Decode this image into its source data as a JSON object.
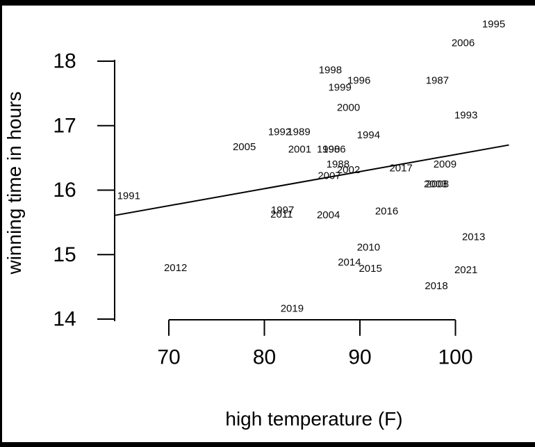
{
  "page": {
    "background_color": "#ffffff",
    "frame_color": "#000000",
    "ink_color": "#000000"
  },
  "chart_data": {
    "type": "scatter",
    "title": "",
    "xlabel": "high temperature (F)",
    "ylabel": "winning time in hours",
    "xlim": [
      64,
      106
    ],
    "ylim": [
      14,
      18.6
    ],
    "xticks": [
      70,
      80,
      90,
      100
    ],
    "yticks": [
      14,
      15,
      16,
      17,
      18
    ],
    "grid": false,
    "legend": "none",
    "point_style": "text-year-labels",
    "points": [
      {
        "label": "1986",
        "x": 87.3,
        "y": 16.63
      },
      {
        "label": "1987",
        "x": 98.1,
        "y": 17.7
      },
      {
        "label": "1988",
        "x": 87.7,
        "y": 16.4
      },
      {
        "label": "1989",
        "x": 83.6,
        "y": 16.9
      },
      {
        "label": "1990",
        "x": 86.7,
        "y": 16.63
      },
      {
        "label": "1991",
        "x": 65.8,
        "y": 15.91
      },
      {
        "label": "1992",
        "x": 81.6,
        "y": 16.9
      },
      {
        "label": "1993",
        "x": 101.1,
        "y": 17.16
      },
      {
        "label": "1994",
        "x": 90.9,
        "y": 16.85
      },
      {
        "label": "1995",
        "x": 104.0,
        "y": 18.57
      },
      {
        "label": "1996",
        "x": 89.9,
        "y": 17.7
      },
      {
        "label": "1997",
        "x": 81.9,
        "y": 15.69
      },
      {
        "label": "1998",
        "x": 86.9,
        "y": 17.86
      },
      {
        "label": "1999",
        "x": 87.9,
        "y": 17.59
      },
      {
        "label": "2000",
        "x": 88.8,
        "y": 17.28
      },
      {
        "label": "2001",
        "x": 83.7,
        "y": 16.63
      },
      {
        "label": "2002",
        "x": 88.8,
        "y": 16.31
      },
      {
        "label": "2003",
        "x": 97.9,
        "y": 16.09
      },
      {
        "label": "2004",
        "x": 86.7,
        "y": 15.61
      },
      {
        "label": "2005",
        "x": 77.9,
        "y": 16.67
      },
      {
        "label": "2006",
        "x": 100.8,
        "y": 18.28
      },
      {
        "label": "2007",
        "x": 86.8,
        "y": 16.22
      },
      {
        "label": "2008",
        "x": 98.1,
        "y": 16.09
      },
      {
        "label": "2009",
        "x": 98.9,
        "y": 16.4
      },
      {
        "label": "2010",
        "x": 90.9,
        "y": 15.11
      },
      {
        "label": "2011",
        "x": 81.8,
        "y": 15.62
      },
      {
        "label": "2012",
        "x": 70.7,
        "y": 14.79
      },
      {
        "label": "2013",
        "x": 101.9,
        "y": 15.27
      },
      {
        "label": "2014",
        "x": 88.9,
        "y": 14.88
      },
      {
        "label": "2015",
        "x": 91.1,
        "y": 14.78
      },
      {
        "label": "2016",
        "x": 92.8,
        "y": 15.67
      },
      {
        "label": "2017",
        "x": 94.3,
        "y": 16.34
      },
      {
        "label": "2018",
        "x": 98.0,
        "y": 14.51
      },
      {
        "label": "2019",
        "x": 82.9,
        "y": 14.16
      },
      {
        "label": "2021",
        "x": 101.1,
        "y": 14.76
      }
    ],
    "trend_line": {
      "x1": 64.4,
      "y1": 15.61,
      "x2": 105.6,
      "y2": 16.7
    }
  }
}
